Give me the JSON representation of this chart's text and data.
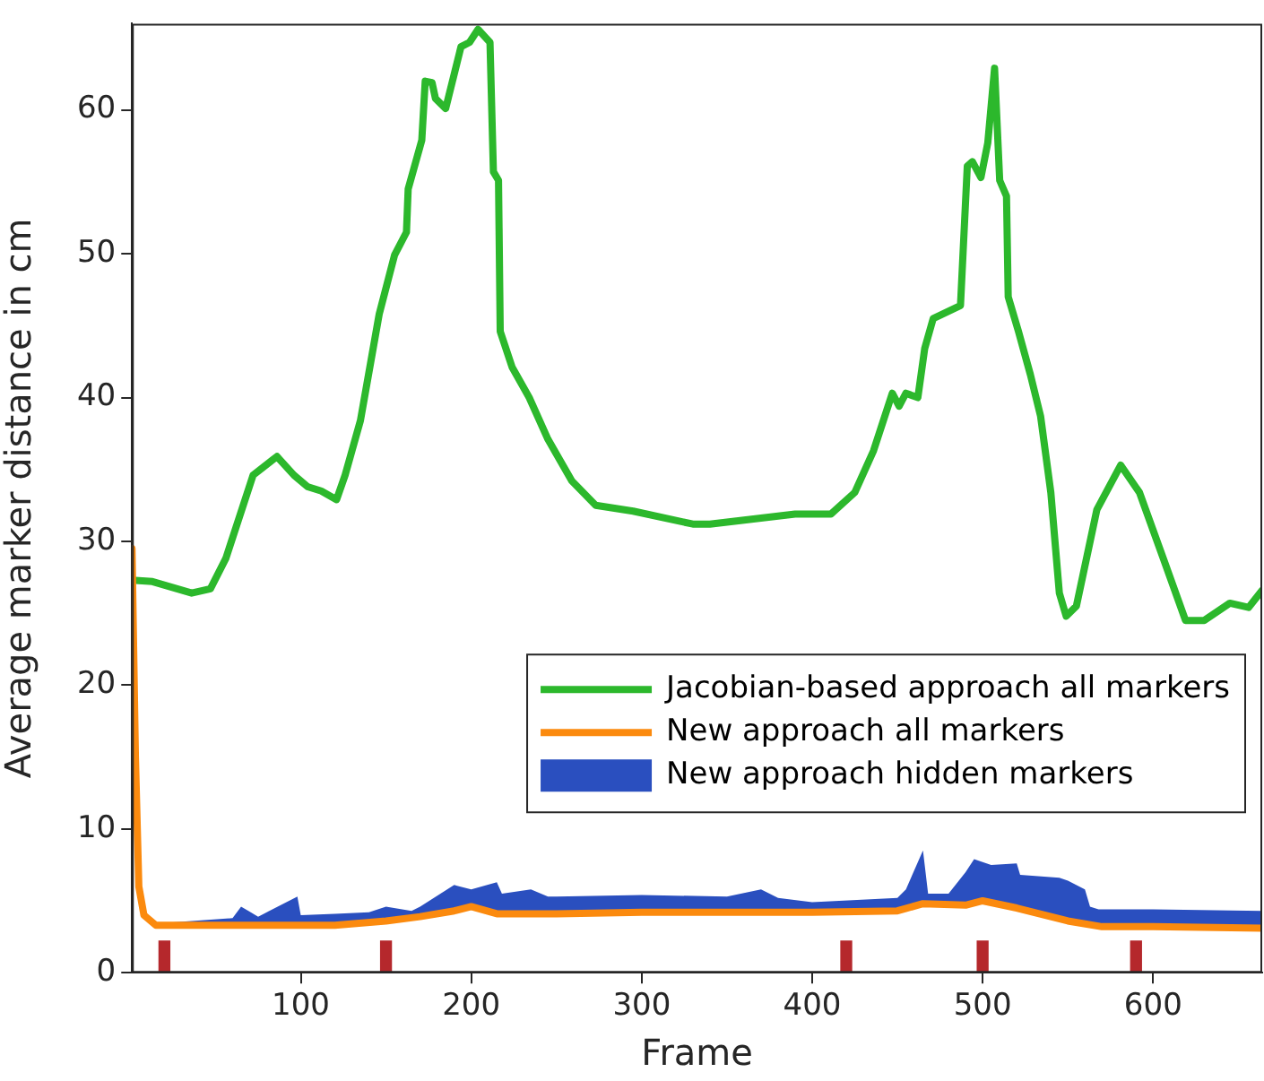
{
  "chart_data": {
    "type": "line",
    "xlabel": "Frame",
    "ylabel": "Average marker distance in cm",
    "xlim": [
      1,
      664
    ],
    "xticks": [
      100,
      200,
      300,
      400,
      500,
      600
    ],
    "ylim": [
      0,
      66
    ],
    "yticks": [
      0,
      10,
      20,
      30,
      40,
      50,
      60
    ],
    "grid": false,
    "legend": "bottom right",
    "series": [
      {
        "name": "Jacobian-based approach all markers",
        "color": "#2cb82c",
        "x": [
          1,
          13,
          36,
          47,
          56,
          72,
          86,
          96,
          104,
          112,
          121,
          126,
          135,
          146,
          155,
          162,
          163,
          171,
          173,
          177,
          179,
          185,
          194,
          199,
          204,
          211,
          213,
          216,
          217,
          224,
          234,
          245,
          259,
          273,
          295,
          330,
          340,
          390,
          411,
          425,
          436,
          447,
          451,
          455,
          462,
          466,
          471,
          487,
          491,
          494,
          499,
          503,
          507,
          510,
          514,
          515,
          521,
          528,
          534,
          540,
          545,
          549,
          555,
          567,
          581,
          592,
          606,
          619,
          630,
          645,
          656,
          664
        ],
        "values": [
          27.3,
          27.2,
          26.4,
          26.7,
          28.8,
          34.6,
          35.9,
          34.6,
          33.8,
          33.5,
          32.9,
          34.6,
          38.4,
          45.8,
          49.9,
          51.5,
          54.5,
          57.9,
          62.0,
          61.9,
          60.8,
          60.1,
          64.4,
          64.7,
          65.6,
          64.7,
          55.7,
          55.1,
          44.6,
          42.1,
          40.0,
          37.1,
          34.2,
          32.5,
          32.1,
          31.2,
          31.2,
          31.9,
          31.9,
          33.4,
          36.3,
          40.3,
          39.4,
          40.3,
          40.0,
          43.4,
          45.5,
          46.4,
          56.1,
          56.4,
          55.3,
          57.7,
          62.9,
          55.1,
          54.0,
          47.0,
          44.6,
          41.6,
          38.7,
          33.4,
          26.4,
          24.8,
          25.5,
          32.2,
          35.3,
          33.4,
          28.8,
          24.5,
          24.5,
          25.7,
          25.4,
          26.6
        ]
      },
      {
        "name": "New approach all markers",
        "color": "#fb8a0e",
        "x": [
          1,
          3,
          5,
          8,
          15,
          60,
          120,
          150,
          170,
          190,
          200,
          215,
          250,
          300,
          400,
          450,
          465,
          490,
          500,
          520,
          550,
          570,
          600,
          664
        ],
        "values": [
          29.5,
          15,
          6,
          4,
          3.3,
          3.3,
          3.3,
          3.6,
          3.9,
          4.3,
          4.6,
          4.1,
          4.1,
          4.2,
          4.2,
          4.3,
          4.8,
          4.7,
          5.0,
          4.5,
          3.6,
          3.2,
          3.2,
          3.1
        ]
      },
      {
        "name": "New approach hidden markers",
        "type": "area",
        "color": "#2a4fbf",
        "x": [
          15,
          25,
          60,
          65,
          75,
          98,
          100,
          120,
          140,
          150,
          165,
          170,
          190,
          200,
          215,
          218,
          235,
          245,
          250,
          300,
          350,
          370,
          380,
          400,
          450,
          455,
          465,
          468,
          480,
          490,
          495,
          500,
          505,
          520,
          522,
          545,
          550,
          560,
          563,
          568,
          570,
          600,
          664
        ],
        "values": [
          3.3,
          3.5,
          3.8,
          4.6,
          3.9,
          5.3,
          4.0,
          4.1,
          4.2,
          4.6,
          4.3,
          4.6,
          6.1,
          5.8,
          6.3,
          5.5,
          5.8,
          5.3,
          5.3,
          5.4,
          5.3,
          5.8,
          5.2,
          4.9,
          5.2,
          5.8,
          8.5,
          5.5,
          5.5,
          7.0,
          7.9,
          7.7,
          7.5,
          7.6,
          6.8,
          6.6,
          6.4,
          5.8,
          4.6,
          4.4,
          4.4,
          4.4,
          4.3
        ]
      },
      {
        "type": "bar",
        "color": "#b5282c",
        "x": [
          20,
          150,
          420,
          500,
          590
        ],
        "values": [
          2.2,
          2.2,
          2.2,
          2.2,
          2.2
        ]
      }
    ]
  }
}
